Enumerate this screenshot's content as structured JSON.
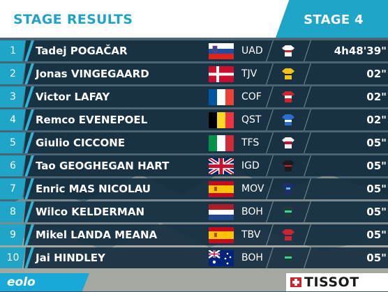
{
  "header": {
    "title": "STAGE RESULTS",
    "stage": "STAGE 4"
  },
  "rows": [
    {
      "rank": "1",
      "name": "Tadej POGAČAR",
      "flag": "slovenia",
      "team": "UAD",
      "jersey": "white-red",
      "time": "4h48'39\""
    },
    {
      "rank": "2",
      "name": "Jonas VINGEGAARD",
      "flag": "denmark",
      "team": "TJV",
      "jersey": "yellow",
      "time": "02\""
    },
    {
      "rank": "3",
      "name": "Victor LAFAY",
      "flag": "france",
      "team": "COF",
      "jersey": "red-white",
      "time": "02\""
    },
    {
      "rank": "4",
      "name": "Remco EVENEPOEL",
      "flag": "belgium",
      "team": "QST",
      "jersey": "blue",
      "time": "02\""
    },
    {
      "rank": "5",
      "name": "Giulio CICCONE",
      "flag": "italy",
      "team": "TFS",
      "jersey": "white-red",
      "time": "05\""
    },
    {
      "rank": "6",
      "name": "Tao GEOGHEGAN HART",
      "flag": "uk",
      "team": "IGD",
      "jersey": "dark",
      "time": "05\""
    },
    {
      "rank": "7",
      "name": "Enric MAS NICOLAU",
      "flag": "spain",
      "team": "MOV",
      "jersey": "navy",
      "time": "05\""
    },
    {
      "rank": "8",
      "name": "Wilco KELDERMAN",
      "flag": "netherlands",
      "team": "BOH",
      "jersey": "teal",
      "time": "05\""
    },
    {
      "rank": "9",
      "name": "Mikel LANDA MEANA",
      "flag": "spain",
      "team": "TBV",
      "jersey": "red",
      "time": "05\""
    },
    {
      "rank": "10",
      "name": "Jai HINDLEY",
      "flag": "australia",
      "team": "BOH",
      "jersey": "teal",
      "time": "05\""
    }
  ],
  "sponsors": {
    "left": "eolo",
    "right": "TISSOT"
  },
  "colors": {
    "accent": "#1ea5c8",
    "row_bg": "#142e40"
  }
}
